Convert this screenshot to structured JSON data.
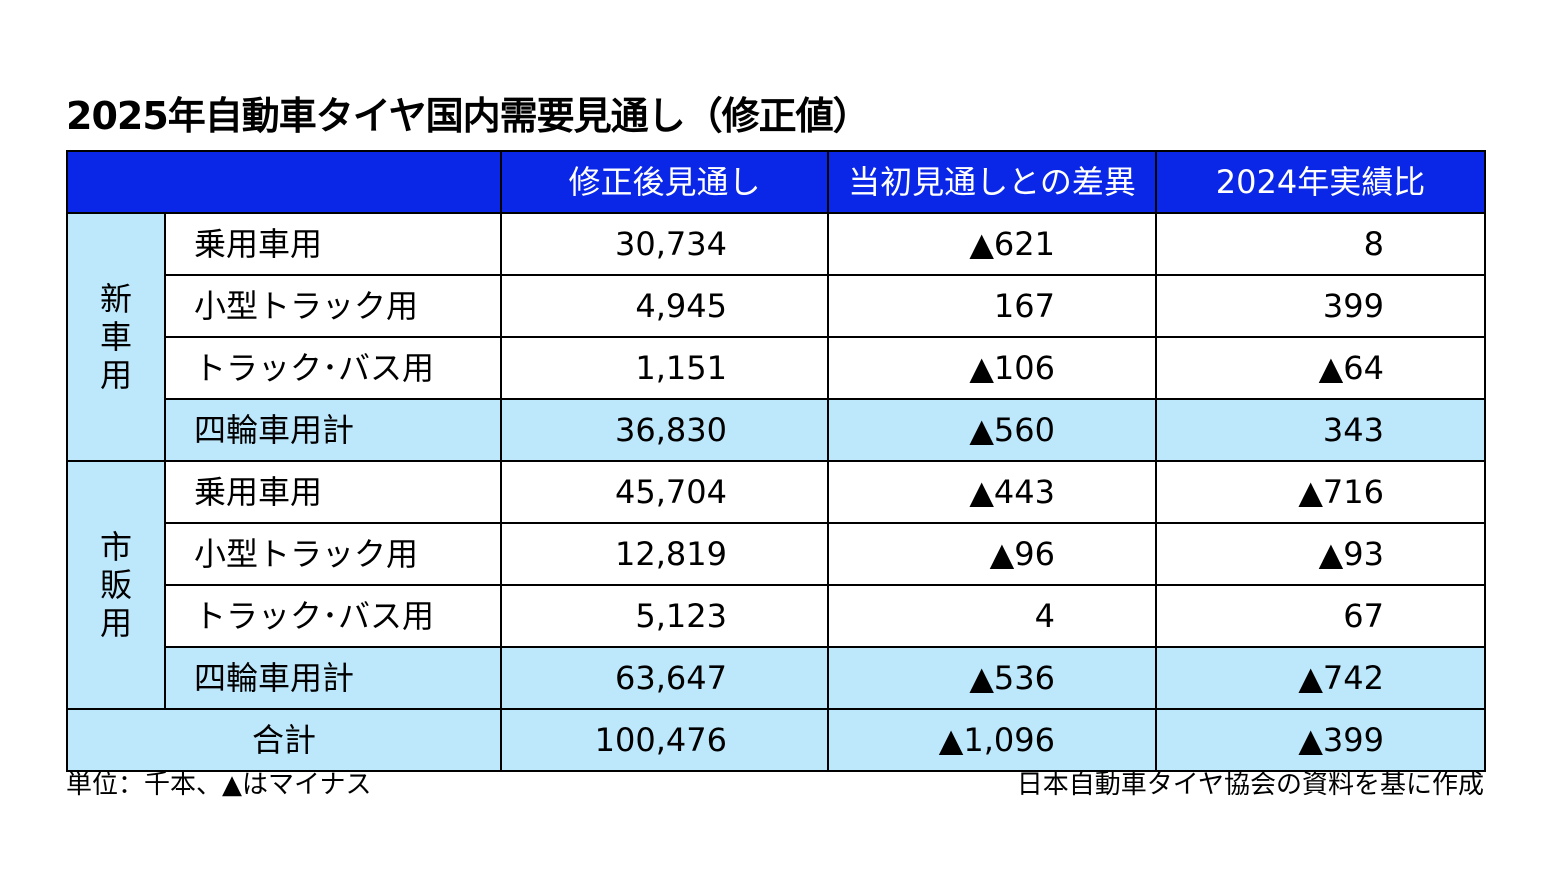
{
  "title": "2025年自動車タイヤ国内需要見通し（修正値）",
  "header": {
    "col1": "修正後見通し",
    "col2": "当初見通しとの差異",
    "col3": "2024年実績比"
  },
  "groups": [
    {
      "name": "新車用",
      "rows": [
        {
          "label": "乗用車用",
          "v1": "30,734",
          "v2": "▲621",
          "v3": "8"
        },
        {
          "label": "小型トラック用",
          "v1": "4,945",
          "v2": "167",
          "v3": "399"
        },
        {
          "label": "トラック･バス用",
          "v1": "1,151",
          "v2": "▲106",
          "v3": "▲64"
        },
        {
          "label": "四輪車用計",
          "v1": "36,830",
          "v2": "▲560",
          "v3": "343"
        }
      ]
    },
    {
      "name": "市販用",
      "rows": [
        {
          "label": "乗用車用",
          "v1": "45,704",
          "v2": "▲443",
          "v3": "▲716"
        },
        {
          "label": "小型トラック用",
          "v1": "12,819",
          "v2": "▲96",
          "v3": "▲93"
        },
        {
          "label": "トラック･バス用",
          "v1": "5,123",
          "v2": "4",
          "v3": "67"
        },
        {
          "label": "四輪車用計",
          "v1": "63,647",
          "v2": "▲536",
          "v3": "▲742"
        }
      ]
    }
  ],
  "total": {
    "label": "合計",
    "v1": "100,476",
    "v2": "▲1,096",
    "v3": "▲399"
  },
  "footer": {
    "unit_note": "単位：千本、▲はマイナス",
    "source": "日本自動車タイヤ協会の資料を基に作成"
  },
  "colors": {
    "header_bg": "#0a27e8",
    "header_text": "#ffffff",
    "highlight_bg": "#bde7fb"
  }
}
